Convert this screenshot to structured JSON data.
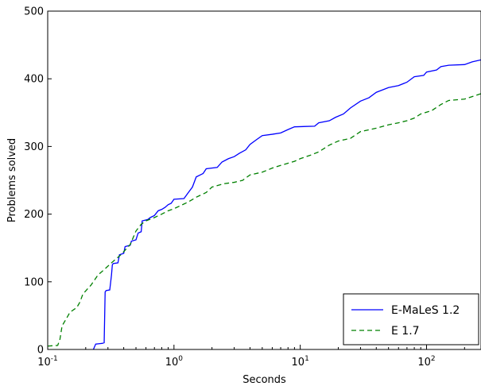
{
  "chart_data": {
    "type": "line",
    "title": "",
    "xlabel": "Seconds",
    "ylabel": "Problems solved",
    "xscale": "log",
    "xlim": [
      0.1,
      270
    ],
    "ylim": [
      0,
      500
    ],
    "grid": false,
    "legend_position": "bottom-right",
    "x_ticks": [
      {
        "value": 0.1,
        "base": "10",
        "exp": "-1"
      },
      {
        "value": 1,
        "base": "10",
        "exp": "0"
      },
      {
        "value": 10,
        "base": "10",
        "exp": "1"
      },
      {
        "value": 100,
        "base": "10",
        "exp": "2"
      }
    ],
    "y_ticks": [
      {
        "value": 0,
        "label": "0"
      },
      {
        "value": 100,
        "label": "100"
      },
      {
        "value": 200,
        "label": "200"
      },
      {
        "value": 300,
        "label": "300"
      },
      {
        "value": 400,
        "label": "400"
      },
      {
        "value": 500,
        "label": "500"
      }
    ],
    "series": [
      {
        "name": "E-MaLeS 1.2",
        "color": "#0000ff",
        "style": "solid",
        "points": [
          [
            0.23,
            0
          ],
          [
            0.24,
            8
          ],
          [
            0.27,
            9
          ],
          [
            0.28,
            10
          ],
          [
            0.285,
            85
          ],
          [
            0.29,
            87
          ],
          [
            0.31,
            88
          ],
          [
            0.32,
            110
          ],
          [
            0.325,
            125
          ],
          [
            0.33,
            127
          ],
          [
            0.36,
            128
          ],
          [
            0.37,
            140
          ],
          [
            0.4,
            142
          ],
          [
            0.41,
            152
          ],
          [
            0.45,
            154
          ],
          [
            0.46,
            160
          ],
          [
            0.5,
            162
          ],
          [
            0.52,
            172
          ],
          [
            0.55,
            174
          ],
          [
            0.56,
            190
          ],
          [
            0.62,
            192
          ],
          [
            0.65,
            195
          ],
          [
            0.7,
            198
          ],
          [
            0.75,
            205
          ],
          [
            0.8,
            207
          ],
          [
            0.85,
            210
          ],
          [
            0.9,
            214
          ],
          [
            0.95,
            216
          ],
          [
            1.0,
            222
          ],
          [
            1.2,
            223
          ],
          [
            1.3,
            232
          ],
          [
            1.4,
            240
          ],
          [
            1.5,
            255
          ],
          [
            1.7,
            260
          ],
          [
            1.8,
            267
          ],
          [
            2.2,
            269
          ],
          [
            2.4,
            277
          ],
          [
            2.7,
            282
          ],
          [
            3.0,
            285
          ],
          [
            3.3,
            290
          ],
          [
            3.7,
            295
          ],
          [
            4.0,
            303
          ],
          [
            4.5,
            310
          ],
          [
            5.0,
            316
          ],
          [
            6.0,
            318
          ],
          [
            7.0,
            320
          ],
          [
            8.0,
            325
          ],
          [
            9.0,
            329
          ],
          [
            13,
            330
          ],
          [
            14,
            335
          ],
          [
            17,
            338
          ],
          [
            19,
            343
          ],
          [
            22,
            348
          ],
          [
            25,
            357
          ],
          [
            30,
            367
          ],
          [
            35,
            372
          ],
          [
            40,
            380
          ],
          [
            50,
            387
          ],
          [
            60,
            390
          ],
          [
            70,
            395
          ],
          [
            80,
            403
          ],
          [
            95,
            405
          ],
          [
            100,
            410
          ],
          [
            120,
            413
          ],
          [
            130,
            418
          ],
          [
            150,
            420
          ],
          [
            200,
            421
          ],
          [
            230,
            425
          ],
          [
            270,
            428
          ]
        ]
      },
      {
        "name": "E 1.7",
        "color": "#008000",
        "style": "dashed",
        "points": [
          [
            0.1,
            5
          ],
          [
            0.12,
            6
          ],
          [
            0.125,
            15
          ],
          [
            0.13,
            35
          ],
          [
            0.14,
            45
          ],
          [
            0.15,
            55
          ],
          [
            0.17,
            62
          ],
          [
            0.18,
            70
          ],
          [
            0.19,
            82
          ],
          [
            0.22,
            95
          ],
          [
            0.25,
            110
          ],
          [
            0.28,
            118
          ],
          [
            0.32,
            128
          ],
          [
            0.38,
            140
          ],
          [
            0.45,
            155
          ],
          [
            0.5,
            175
          ],
          [
            0.55,
            185
          ],
          [
            0.6,
            190
          ],
          [
            0.7,
            195
          ],
          [
            0.8,
            200
          ],
          [
            0.9,
            205
          ],
          [
            1.0,
            208
          ],
          [
            1.3,
            218
          ],
          [
            1.5,
            225
          ],
          [
            1.8,
            232
          ],
          [
            2.0,
            240
          ],
          [
            2.5,
            245
          ],
          [
            3.0,
            247
          ],
          [
            3.5,
            250
          ],
          [
            4.0,
            258
          ],
          [
            5.0,
            262
          ],
          [
            6.0,
            268
          ],
          [
            7.0,
            272
          ],
          [
            9.0,
            278
          ],
          [
            10,
            282
          ],
          [
            12,
            287
          ],
          [
            14,
            292
          ],
          [
            17,
            302
          ],
          [
            20,
            308
          ],
          [
            25,
            312
          ],
          [
            30,
            322
          ],
          [
            40,
            327
          ],
          [
            50,
            332
          ],
          [
            60,
            335
          ],
          [
            70,
            338
          ],
          [
            80,
            342
          ],
          [
            90,
            348
          ],
          [
            110,
            353
          ],
          [
            130,
            362
          ],
          [
            150,
            368
          ],
          [
            200,
            370
          ],
          [
            270,
            378
          ]
        ]
      }
    ]
  }
}
